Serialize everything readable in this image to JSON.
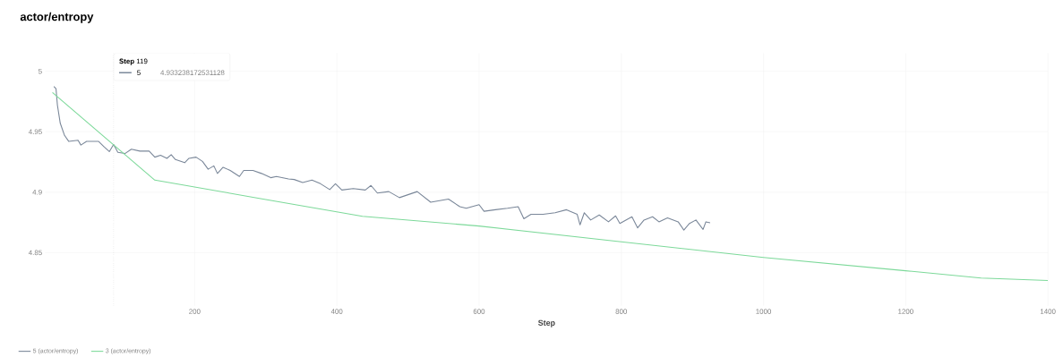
{
  "chart_data": {
    "type": "line",
    "title": "actor/entropy",
    "xlabel": "Step",
    "xlim": [
      -10,
      1400
    ],
    "ylim": [
      4.806,
      5.015
    ],
    "xticks": [
      200,
      400,
      600,
      800,
      1000,
      1200,
      1400
    ],
    "yticks": [
      4.85,
      4.9,
      4.95,
      5
    ],
    "grid": true,
    "legend": "bottom left",
    "marker": "none",
    "line_style": "solid",
    "ref_lines": [
      {
        "axis": "x",
        "value": 86,
        "color": "#999999",
        "line_style": "dotted"
      }
    ],
    "annotations": [
      "**Step** 119",
      "5",
      "4.933238172531128"
    ],
    "series": [
      {
        "name": "5 (actor/entropy)",
        "color": "#7a8799",
        "x": [
          2,
          5,
          7,
          11,
          17,
          23,
          36,
          40,
          48,
          65,
          73,
          80,
          86,
          92,
          102,
          111,
          123,
          136,
          144,
          152,
          161,
          167,
          173,
          186,
          192,
          202,
          211,
          219,
          227,
          232,
          240,
          250,
          263,
          269,
          282,
          294,
          307,
          315,
          332,
          340,
          352,
          365,
          377,
          390,
          398,
          407,
          423,
          440,
          448,
          457,
          473,
          488,
          513,
          532,
          557,
          573,
          582,
          600,
          607,
          623,
          640,
          655,
          663,
          673,
          690,
          707,
          723,
          738,
          742,
          748,
          757,
          769,
          782,
          792,
          798,
          815,
          823,
          832,
          844,
          853,
          865,
          880,
          888,
          896,
          905,
          915,
          919,
          925
        ],
        "values": [
          4.9875,
          4.9857,
          4.972,
          4.957,
          4.947,
          4.942,
          4.943,
          4.939,
          4.942,
          4.942,
          4.9374,
          4.9336,
          4.9394,
          4.933,
          4.932,
          4.9356,
          4.934,
          4.934,
          4.929,
          4.9306,
          4.928,
          4.931,
          4.927,
          4.9244,
          4.928,
          4.929,
          4.9255,
          4.919,
          4.9218,
          4.9155,
          4.9206,
          4.918,
          4.913,
          4.918,
          4.918,
          4.9155,
          4.912,
          4.913,
          4.911,
          4.9105,
          4.908,
          4.91,
          4.907,
          4.9022,
          4.907,
          4.9018,
          4.903,
          4.9018,
          4.9056,
          4.8993,
          4.9005,
          4.8955,
          4.9005,
          4.8917,
          4.8943,
          4.888,
          4.8867,
          4.8897,
          4.8842,
          4.8855,
          4.8867,
          4.888,
          4.878,
          4.8817,
          4.8817,
          4.883,
          4.8855,
          4.8817,
          4.873,
          4.883,
          4.877,
          4.8812,
          4.8755,
          4.8804,
          4.8742,
          4.8797,
          4.8705,
          4.877,
          4.8797,
          4.8755,
          4.8787,
          4.8755,
          4.8687,
          4.8742,
          4.877,
          4.8692,
          4.8755,
          4.8747
        ]
      },
      {
        "name": "3 (actor/entropy)",
        "color": "#7dd99a",
        "x": [
          0,
          144,
          300,
          436,
          600,
          800,
          1000,
          1200,
          1306,
          1400
        ],
        "values": [
          4.9825,
          4.91,
          4.894,
          4.88,
          4.872,
          4.859,
          4.846,
          4.835,
          4.829,
          4.827
        ]
      }
    ]
  }
}
